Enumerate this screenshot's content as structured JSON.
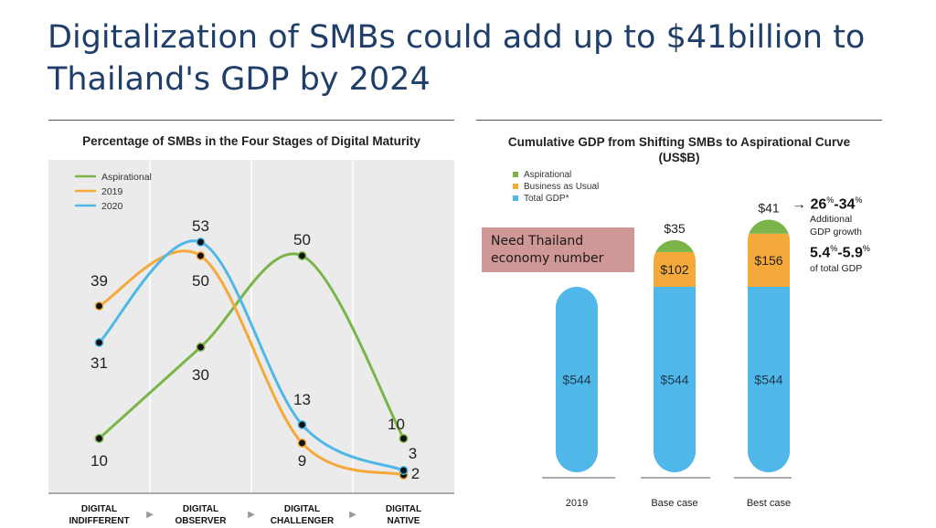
{
  "slide": {
    "title_line1": "Digitalization of SMBs could add up to $41billion to",
    "title_line2": "Thailand's GDP by 2024"
  },
  "colors": {
    "aspirational": "#7bb54a",
    "y2019": "#f5a93a",
    "y2020": "#4fb8e8",
    "title": "#1f3f6a",
    "note_box": "#cf9795",
    "plot_bg": "#ebebeb"
  },
  "left_chart": {
    "title": "Percentage of SMBs in the Four Stages of Digital Maturity",
    "legend": [
      "Aspirational",
      "2019",
      "2020"
    ],
    "stages": [
      {
        "line1": "DIGITAL",
        "line2": "INDIFFERENT"
      },
      {
        "line1": "DIGITAL",
        "line2": "OBSERVER"
      },
      {
        "line1": "DIGITAL",
        "line2": "CHALLENGER"
      },
      {
        "line1": "DIGITAL",
        "line2": "NATIVE"
      }
    ],
    "arrow_glyph": "▶"
  },
  "right_chart": {
    "title_line1": "Cumulative GDP from Shifting SMBs to Aspirational Curve",
    "title_line2": "(US$B)",
    "legend": [
      "Aspirational",
      "Business as Usual",
      "Total GDP*"
    ],
    "note": "Need Thailand economy number",
    "growth": {
      "range1_a": "26",
      "range1_b": "34",
      "range1_caption_line1": "Additional",
      "range1_caption_line2": "GDP growth",
      "range2_a": "5.4",
      "range2_b": "5.9",
      "range2_caption": "of total GDP",
      "percent": "%",
      "dash": "-",
      "arrow": "→"
    }
  },
  "chart_data": [
    {
      "type": "line",
      "title": "Percentage of SMBs in the Four Stages of Digital Maturity",
      "categories": [
        "DIGITAL INDIFFERENT",
        "DIGITAL OBSERVER",
        "DIGITAL CHALLENGER",
        "DIGITAL NATIVE"
      ],
      "series": [
        {
          "name": "Aspirational",
          "values": [
            10,
            30,
            50,
            10
          ]
        },
        {
          "name": "2019",
          "values": [
            39,
            50,
            9,
            2
          ]
        },
        {
          "name": "2020",
          "values": [
            31,
            53,
            13,
            3
          ]
        }
      ],
      "data_labels": [
        "39",
        "31",
        "10",
        "53",
        "50",
        "30",
        "50",
        "13",
        "9",
        "10",
        "3",
        "2"
      ],
      "ylim": [
        0,
        60
      ],
      "legend_position": "top-left",
      "grid": false
    },
    {
      "type": "bar",
      "stacked": true,
      "title": "Cumulative GDP from Shifting SMBs to Aspirational Curve (US$B)",
      "categories": [
        "2019",
        "Base case",
        "Best case"
      ],
      "series": [
        {
          "name": "Total GDP*",
          "values": [
            544,
            544,
            544
          ],
          "labels": [
            "$544",
            "$544",
            "$544"
          ]
        },
        {
          "name": "Business as Usual",
          "values": [
            0,
            102,
            156
          ],
          "labels": [
            "",
            "$102",
            "$156"
          ]
        },
        {
          "name": "Aspirational",
          "values": [
            0,
            35,
            41
          ],
          "labels": [
            "",
            "$35",
            "$41"
          ]
        }
      ],
      "legend_position": "top-left"
    }
  ]
}
